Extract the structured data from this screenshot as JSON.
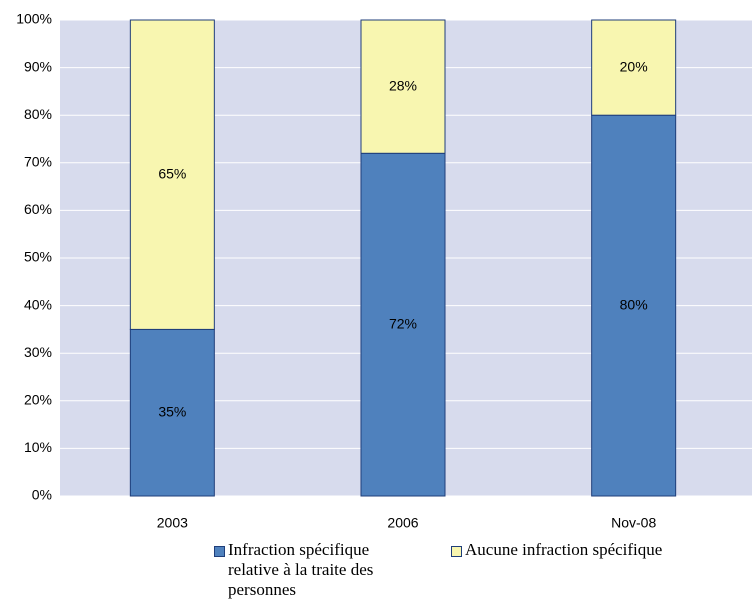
{
  "chart_data": {
    "type": "stacked-bar",
    "categories": [
      "2003",
      "2006",
      "Nov-08"
    ],
    "series": [
      {
        "name": "Infraction spécifique relative à la traite des personnes",
        "color": "#4f81bd",
        "values": [
          35,
          72,
          80
        ],
        "value_labels": [
          "35%",
          "72%",
          "80%"
        ]
      },
      {
        "name": "Aucune infraction spécifique",
        "color": "#f8f6b0",
        "values": [
          65,
          28,
          20
        ],
        "value_labels": [
          "65%",
          "28%",
          "20%"
        ]
      }
    ],
    "ylim": [
      0,
      100
    ],
    "yticks": [
      {
        "value": 0,
        "label": "0%"
      },
      {
        "value": 10,
        "label": "10%"
      },
      {
        "value": 20,
        "label": "20%"
      },
      {
        "value": 30,
        "label": "30%"
      },
      {
        "value": 40,
        "label": "40%"
      },
      {
        "value": 50,
        "label": "50%"
      },
      {
        "value": 60,
        "label": "60%"
      },
      {
        "value": 70,
        "label": "70%"
      },
      {
        "value": 80,
        "label": "80%"
      },
      {
        "value": 90,
        "label": "90%"
      },
      {
        "value": 100,
        "label": "100%"
      }
    ],
    "grid": true,
    "legend": "bottom"
  }
}
